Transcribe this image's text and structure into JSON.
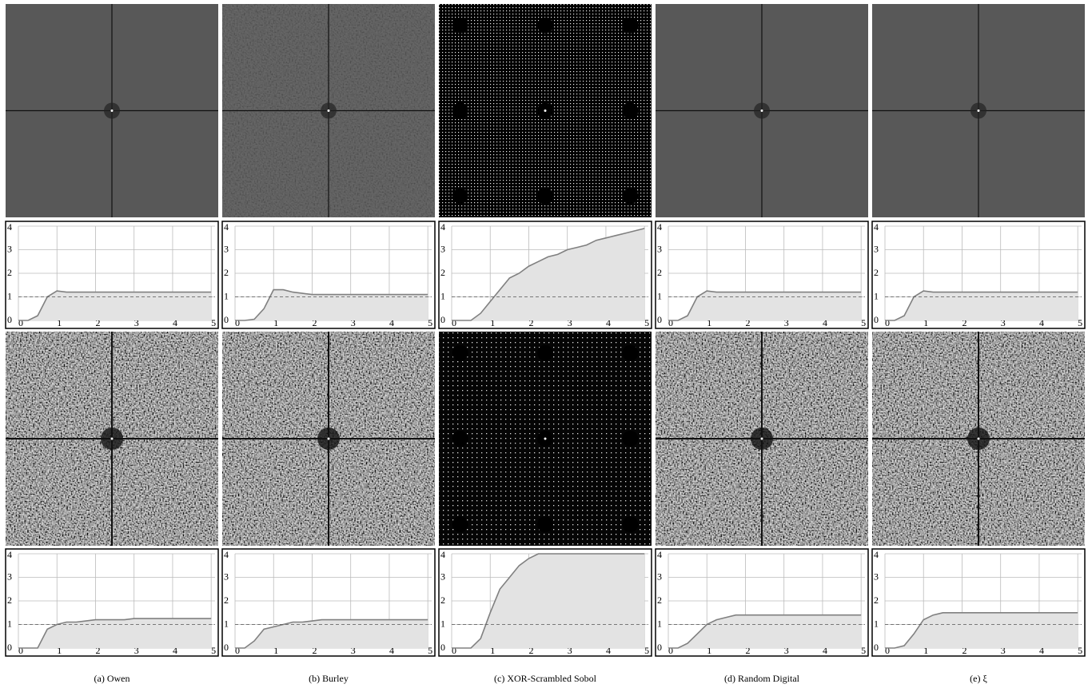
{
  "captions": [
    "(a) Owen",
    "(b) Burley",
    "(c) XOR-Scrambled Sobol",
    "(d) Random Digital",
    "(e) ξ"
  ],
  "chart_data": [
    {
      "type": "area",
      "x": [
        0,
        0.25,
        0.5,
        0.75,
        1,
        1.25,
        1.5,
        1.75,
        2,
        2.25,
        2.5,
        2.75,
        3,
        3.25,
        3.5,
        3.75,
        4,
        4.25,
        4.5,
        4.75,
        5
      ],
      "values": [
        0,
        0,
        0.2,
        1.0,
        1.25,
        1.2,
        1.2,
        1.2,
        1.2,
        1.2,
        1.2,
        1.2,
        1.2,
        1.2,
        1.2,
        1.2,
        1.2,
        1.2,
        1.2,
        1.2,
        1.2
      ],
      "xlim": [
        0,
        5.1
      ],
      "ylim": [
        0,
        4
      ],
      "xticks": [
        0,
        1,
        2,
        3,
        4,
        5
      ],
      "yticks": [
        0,
        1,
        2,
        3,
        4
      ],
      "reference_line": 1,
      "grid": true,
      "color": "#808080"
    },
    {
      "type": "area",
      "x": [
        0,
        0.25,
        0.5,
        0.75,
        1,
        1.25,
        1.5,
        1.75,
        2,
        2.25,
        2.5,
        2.75,
        3,
        3.25,
        3.5,
        3.75,
        4,
        4.25,
        4.5,
        4.75,
        5
      ],
      "values": [
        0,
        0,
        0.05,
        0.5,
        1.3,
        1.3,
        1.2,
        1.15,
        1.1,
        1.1,
        1.1,
        1.1,
        1.1,
        1.1,
        1.1,
        1.1,
        1.1,
        1.1,
        1.1,
        1.1,
        1.1
      ],
      "xlim": [
        0,
        5.1
      ],
      "ylim": [
        0,
        4
      ],
      "xticks": [
        0,
        1,
        2,
        3,
        4,
        5
      ],
      "yticks": [
        0,
        1,
        2,
        3,
        4
      ],
      "reference_line": 1,
      "grid": true,
      "color": "#808080"
    },
    {
      "type": "area",
      "x": [
        0,
        0.25,
        0.5,
        0.75,
        1,
        1.25,
        1.5,
        1.75,
        2,
        2.25,
        2.5,
        2.75,
        3,
        3.25,
        3.5,
        3.75,
        4,
        4.25,
        4.5,
        4.75,
        5
      ],
      "values": [
        0,
        0,
        0,
        0.3,
        0.8,
        1.3,
        1.8,
        2.0,
        2.3,
        2.5,
        2.7,
        2.8,
        3.0,
        3.1,
        3.2,
        3.4,
        3.5,
        3.6,
        3.7,
        3.8,
        3.9
      ],
      "xlim": [
        0,
        5.1
      ],
      "ylim": [
        0,
        4
      ],
      "xticks": [
        0,
        1,
        2,
        3,
        4,
        5
      ],
      "yticks": [
        0,
        1,
        2,
        3,
        4
      ],
      "reference_line": 1,
      "grid": true,
      "color": "#808080"
    },
    {
      "type": "area",
      "x": [
        0,
        0.25,
        0.5,
        0.75,
        1,
        1.25,
        1.5,
        1.75,
        2,
        2.25,
        2.5,
        2.75,
        3,
        3.25,
        3.5,
        3.75,
        4,
        4.25,
        4.5,
        4.75,
        5
      ],
      "values": [
        0,
        0,
        0.2,
        1.0,
        1.25,
        1.2,
        1.2,
        1.2,
        1.2,
        1.2,
        1.2,
        1.2,
        1.2,
        1.2,
        1.2,
        1.2,
        1.2,
        1.2,
        1.2,
        1.2,
        1.2
      ],
      "xlim": [
        0,
        5.1
      ],
      "ylim": [
        0,
        4
      ],
      "xticks": [
        0,
        1,
        2,
        3,
        4,
        5
      ],
      "yticks": [
        0,
        1,
        2,
        3,
        4
      ],
      "reference_line": 1,
      "grid": true,
      "color": "#808080"
    },
    {
      "type": "area",
      "x": [
        0,
        0.25,
        0.5,
        0.75,
        1,
        1.25,
        1.5,
        1.75,
        2,
        2.25,
        2.5,
        2.75,
        3,
        3.25,
        3.5,
        3.75,
        4,
        4.25,
        4.5,
        4.75,
        5
      ],
      "values": [
        0,
        0,
        0.2,
        1.0,
        1.25,
        1.2,
        1.2,
        1.2,
        1.2,
        1.2,
        1.2,
        1.2,
        1.2,
        1.2,
        1.2,
        1.2,
        1.2,
        1.2,
        1.2,
        1.2,
        1.2
      ],
      "xlim": [
        0,
        5.1
      ],
      "ylim": [
        0,
        4
      ],
      "xticks": [
        0,
        1,
        2,
        3,
        4,
        5
      ],
      "yticks": [
        0,
        1,
        2,
        3,
        4
      ],
      "reference_line": 1,
      "grid": true,
      "color": "#808080"
    },
    {
      "type": "area",
      "x": [
        0,
        0.25,
        0.5,
        0.75,
        1,
        1.25,
        1.5,
        1.75,
        2,
        2.25,
        2.5,
        2.75,
        3,
        3.25,
        3.5,
        3.75,
        4,
        4.25,
        4.5,
        4.75,
        5
      ],
      "values": [
        0,
        0,
        0,
        0.8,
        1.0,
        1.1,
        1.1,
        1.15,
        1.2,
        1.2,
        1.2,
        1.2,
        1.25,
        1.25,
        1.25,
        1.25,
        1.25,
        1.25,
        1.25,
        1.25,
        1.25
      ],
      "xlim": [
        0,
        5.1
      ],
      "ylim": [
        0,
        4
      ],
      "xticks": [
        0,
        1,
        2,
        3,
        4,
        5
      ],
      "yticks": [
        0,
        1,
        2,
        3,
        4
      ],
      "reference_line": 1,
      "grid": true,
      "color": "#808080"
    },
    {
      "type": "area",
      "x": [
        0,
        0.25,
        0.5,
        0.75,
        1,
        1.25,
        1.5,
        1.75,
        2,
        2.25,
        2.5,
        2.75,
        3,
        3.25,
        3.5,
        3.75,
        4,
        4.25,
        4.5,
        4.75,
        5
      ],
      "values": [
        0,
        0,
        0.3,
        0.8,
        0.9,
        1.0,
        1.1,
        1.1,
        1.15,
        1.2,
        1.2,
        1.2,
        1.2,
        1.2,
        1.2,
        1.2,
        1.2,
        1.2,
        1.2,
        1.2,
        1.2
      ],
      "xlim": [
        0,
        5.1
      ],
      "ylim": [
        0,
        4
      ],
      "xticks": [
        0,
        1,
        2,
        3,
        4,
        5
      ],
      "yticks": [
        0,
        1,
        2,
        3,
        4
      ],
      "reference_line": 1,
      "grid": true,
      "color": "#808080"
    },
    {
      "type": "area",
      "x": [
        0,
        0.25,
        0.5,
        0.75,
        1,
        1.25,
        1.5,
        1.75,
        2,
        2.25,
        2.5,
        2.75,
        3,
        3.25,
        3.5,
        3.75,
        4,
        4.25,
        4.5,
        4.75,
        5
      ],
      "values": [
        0,
        0,
        0,
        0.4,
        1.5,
        2.5,
        3.0,
        3.5,
        3.8,
        4,
        4,
        4,
        4,
        4,
        4,
        4,
        4,
        4,
        4,
        4,
        4
      ],
      "xlim": [
        0,
        5.1
      ],
      "ylim": [
        0,
        4
      ],
      "xticks": [
        0,
        1,
        2,
        3,
        4,
        5
      ],
      "yticks": [
        0,
        1,
        2,
        3,
        4
      ],
      "reference_line": 1,
      "grid": true,
      "color": "#808080"
    },
    {
      "type": "area",
      "x": [
        0,
        0.25,
        0.5,
        0.75,
        1,
        1.25,
        1.5,
        1.75,
        2,
        2.25,
        2.5,
        2.75,
        3,
        3.25,
        3.5,
        3.75,
        4,
        4.25,
        4.5,
        4.75,
        5
      ],
      "values": [
        0,
        0,
        0.2,
        0.6,
        1.0,
        1.2,
        1.3,
        1.4,
        1.4,
        1.4,
        1.4,
        1.4,
        1.4,
        1.4,
        1.4,
        1.4,
        1.4,
        1.4,
        1.4,
        1.4,
        1.4
      ],
      "xlim": [
        0,
        5.1
      ],
      "ylim": [
        0,
        4
      ],
      "xticks": [
        0,
        1,
        2,
        3,
        4,
        5
      ],
      "yticks": [
        0,
        1,
        2,
        3,
        4
      ],
      "reference_line": 1,
      "grid": true,
      "color": "#808080"
    },
    {
      "type": "area",
      "x": [
        0,
        0.25,
        0.5,
        0.75,
        1,
        1.25,
        1.5,
        1.75,
        2,
        2.25,
        2.5,
        2.75,
        3,
        3.25,
        3.5,
        3.75,
        4,
        4.25,
        4.5,
        4.75,
        5
      ],
      "values": [
        0,
        0,
        0.1,
        0.6,
        1.2,
        1.4,
        1.5,
        1.5,
        1.5,
        1.5,
        1.5,
        1.5,
        1.5,
        1.5,
        1.5,
        1.5,
        1.5,
        1.5,
        1.5,
        1.5,
        1.5
      ],
      "xlim": [
        0,
        5.1
      ],
      "ylim": [
        0,
        4
      ],
      "xticks": [
        0,
        1,
        2,
        3,
        4,
        5
      ],
      "yticks": [
        0,
        1,
        2,
        3,
        4
      ],
      "reference_line": 1,
      "grid": true,
      "color": "#808080"
    }
  ]
}
